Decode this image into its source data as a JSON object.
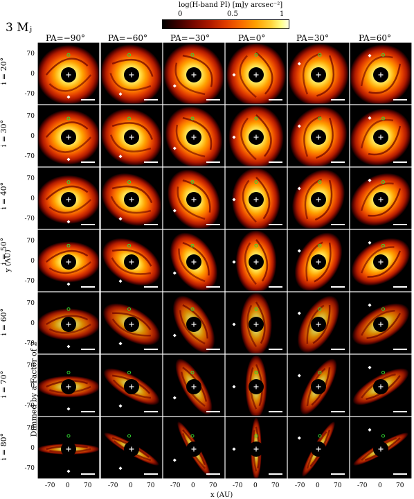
{
  "colorbar": {
    "title": "log(H-band PI) [mJy arcsec⁻²]",
    "ticks": [
      "0",
      "0.5",
      "1"
    ],
    "gradient": [
      "#000000",
      "#7a0800",
      "#e03c00",
      "#ffa000",
      "#ffff88",
      "#ffffe6"
    ]
  },
  "model_label": "3 Mⱼ",
  "columns": [
    {
      "label": "PA=−90°",
      "pa": -90
    },
    {
      "label": "PA=−60°",
      "pa": -60
    },
    {
      "label": "PA=−30°",
      "pa": -30
    },
    {
      "label": "PA=0°",
      "pa": 0
    },
    {
      "label": "PA=30°",
      "pa": 30
    },
    {
      "label": "PA=60°",
      "pa": 60
    }
  ],
  "rows": [
    {
      "label": "i = 20°",
      "incl": 20
    },
    {
      "label": "i = 30°",
      "incl": 30
    },
    {
      "label": "i = 40°",
      "incl": 40
    },
    {
      "label": "i = 50°",
      "incl": 50
    },
    {
      "label": "i = 60°",
      "incl": 60
    },
    {
      "label": "i = 70°",
      "incl": 70
    },
    {
      "label": "i = 80°",
      "incl": 80
    }
  ],
  "y_ticks": [
    "70",
    "0",
    "-70"
  ],
  "x_ticks": [
    "-70",
    "0",
    "70"
  ],
  "x_label": "x (AU)",
  "y_label": "y (AU)",
  "dimmed_note": "Dimmed by a Factor of 2",
  "colors": {
    "marker_green": "#33dd33",
    "marker_white": "#ffffff",
    "frame": "#000000"
  }
}
